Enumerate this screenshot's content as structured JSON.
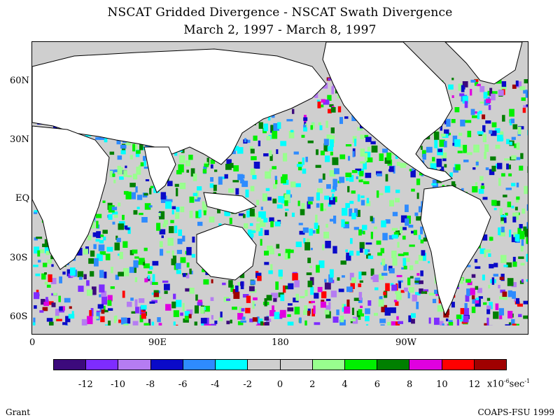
{
  "title": "NSCAT Gridded Divergence - NSCAT Swath Divergence",
  "subtitle": "March 2, 1997 - March 8, 1997",
  "lat_labels": [
    "60N",
    "30N",
    "EQ",
    "30S",
    "60S"
  ],
  "lon_labels": [
    "0",
    "90E",
    "180",
    "90W"
  ],
  "colorbar": {
    "colors": [
      "#3c0a7c",
      "#7e2cff",
      "#b57cf2",
      "#0a0ac8",
      "#2e8bff",
      "#00ffff",
      "#cfcfcf",
      "#cfcfcf",
      "#98ff8e",
      "#00f000",
      "#008000",
      "#e000e0",
      "#ff0000",
      "#a00000"
    ],
    "tick_labels": [
      "-12",
      "-10",
      "-8",
      "-6",
      "-4",
      "-2",
      "0",
      "2",
      "4",
      "6",
      "8",
      "10",
      "12"
    ],
    "units_base": "x10",
    "units_exp": "-6",
    "units_tail": "sec",
    "units_exp2": "-1"
  },
  "footer_left": "Grant",
  "footer_right": "COAPS-FSU 1999"
}
